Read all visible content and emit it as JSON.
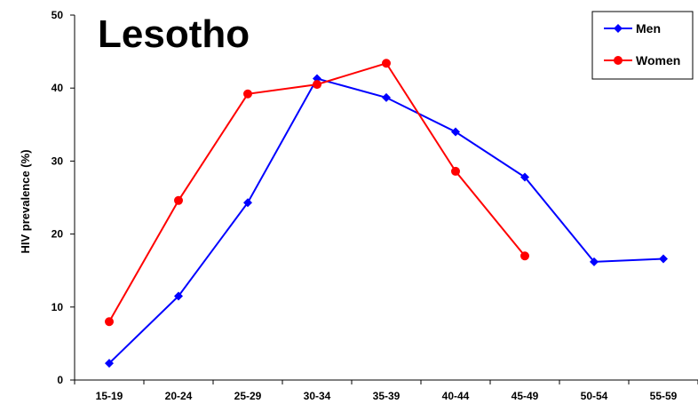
{
  "chart_data": {
    "type": "line",
    "title": "Lesotho",
    "xlabel": "",
    "ylabel": "HIV prevalence (%)",
    "categories": [
      "15-19",
      "20-24",
      "25-29",
      "30-34",
      "35-39",
      "40-44",
      "45-49",
      "50-54",
      "55-59"
    ],
    "ylim": [
      0,
      50
    ],
    "yticks": [
      "0",
      "10",
      "20",
      "30",
      "40",
      "50"
    ],
    "grid": false,
    "legend_position": "top-right",
    "series": [
      {
        "name": "Men",
        "color": "#0000ff",
        "marker": "diamond",
        "values": [
          2.3,
          11.5,
          24.3,
          41.3,
          38.7,
          34.0,
          27.8,
          16.2,
          16.6
        ]
      },
      {
        "name": "Women",
        "color": "#ff0000",
        "marker": "circle",
        "values": [
          8.0,
          24.6,
          39.2,
          40.5,
          43.4,
          28.6,
          17.0,
          null,
          null
        ]
      }
    ]
  }
}
